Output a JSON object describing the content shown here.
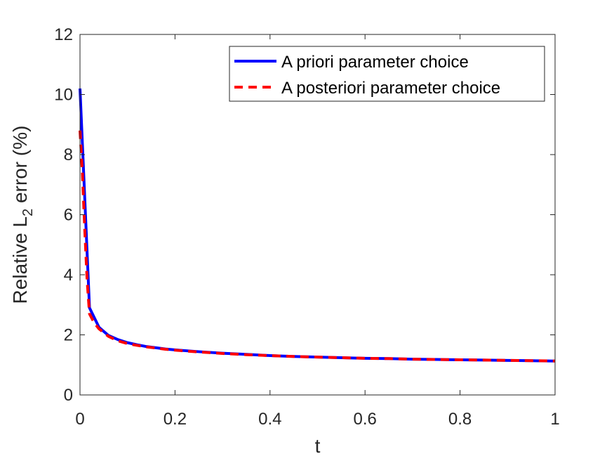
{
  "chart_data": {
    "type": "line",
    "title": "",
    "xlabel": "t",
    "ylabel": {
      "prefix": "Relative L",
      "subscript": "2",
      "suffix": " error (%)"
    },
    "xlim": [
      0,
      1
    ],
    "ylim": [
      0,
      12
    ],
    "xticks": [
      0,
      0.2,
      0.4,
      0.6,
      0.8,
      1
    ],
    "xtick_labels": [
      "0",
      "0.2",
      "0.4",
      "0.6",
      "0.8",
      "1"
    ],
    "yticks": [
      0,
      2,
      4,
      6,
      8,
      10,
      12
    ],
    "ytick_labels": [
      "0",
      "2",
      "4",
      "6",
      "8",
      "10",
      "12"
    ],
    "grid": false,
    "legend_position": "top-right",
    "series": [
      {
        "name": "A priori parameter choice",
        "color": "#0000ff",
        "style": "solid",
        "x": [
          0,
          0.02,
          0.04,
          0.06,
          0.08,
          0.1,
          0.12,
          0.14,
          0.16,
          0.18,
          0.2,
          0.25,
          0.3,
          0.35,
          0.4,
          0.45,
          0.5,
          0.55,
          0.6,
          0.65,
          0.7,
          0.75,
          0.8,
          0.85,
          0.9,
          0.95,
          1.0
        ],
        "y": [
          10.2,
          2.9,
          2.25,
          1.98,
          1.84,
          1.74,
          1.67,
          1.61,
          1.57,
          1.53,
          1.5,
          1.44,
          1.39,
          1.35,
          1.31,
          1.28,
          1.26,
          1.24,
          1.22,
          1.21,
          1.19,
          1.18,
          1.17,
          1.16,
          1.15,
          1.14,
          1.13
        ]
      },
      {
        "name": "A posteriori parameter choice",
        "color": "#ff0000",
        "style": "dashed",
        "x": [
          0,
          0.005,
          0.01,
          0.015,
          0.02,
          0.03,
          0.04,
          0.06,
          0.08,
          0.1,
          0.12,
          0.14,
          0.16,
          0.18,
          0.2,
          0.25,
          0.3,
          0.35,
          0.4,
          0.45,
          0.5,
          0.55,
          0.6,
          0.65,
          0.7,
          0.75,
          0.8,
          0.85,
          0.9,
          0.95,
          1.0
        ],
        "y": [
          8.8,
          7.4,
          5.5,
          3.8,
          2.7,
          2.4,
          2.2,
          1.95,
          1.8,
          1.71,
          1.65,
          1.6,
          1.56,
          1.52,
          1.49,
          1.43,
          1.38,
          1.34,
          1.31,
          1.28,
          1.26,
          1.24,
          1.22,
          1.21,
          1.19,
          1.18,
          1.17,
          1.16,
          1.15,
          1.14,
          1.13
        ]
      }
    ]
  }
}
